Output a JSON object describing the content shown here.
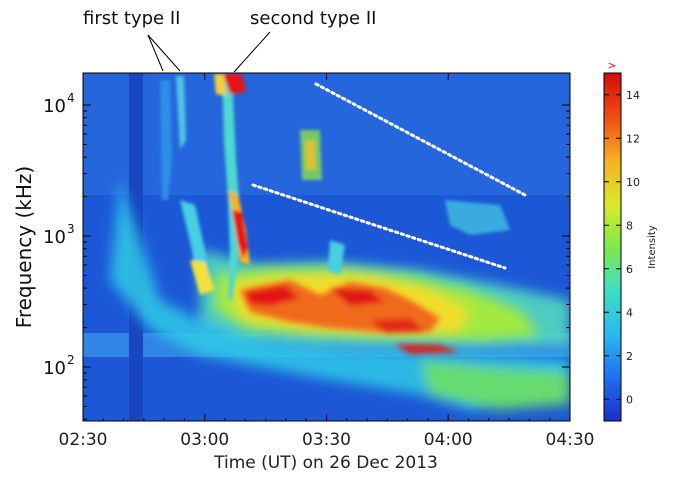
{
  "chart_data": {
    "type": "heatmap",
    "title": "",
    "xlabel": "Time (UT) on 26 Dec 2013",
    "ylabel": "Frequency (kHz)",
    "x_ticks": [
      "02:30",
      "03:00",
      "03:30",
      "04:00",
      "04:30"
    ],
    "y_ticks": [
      {
        "base": "10",
        "exp": "2"
      },
      {
        "base": "10",
        "exp": "3"
      },
      {
        "base": "10",
        "exp": "4"
      }
    ],
    "y_scale": "log",
    "colorbar": {
      "label": "Intensity",
      "ticks": [
        "0",
        "2",
        "4",
        "6",
        "8",
        "10",
        "12",
        "14"
      ],
      "range": [
        -1,
        15
      ],
      "overflow_marker": ">"
    },
    "annotations": [
      {
        "text": "first type II"
      },
      {
        "text": "second type II"
      }
    ],
    "colors": {
      "background_low": "#1c58d6",
      "mid_cyan": "#2fd3ea",
      "mid_green": "#7be84a",
      "high_yellow": "#f6e03a",
      "peak_red": "#e01010"
    }
  }
}
